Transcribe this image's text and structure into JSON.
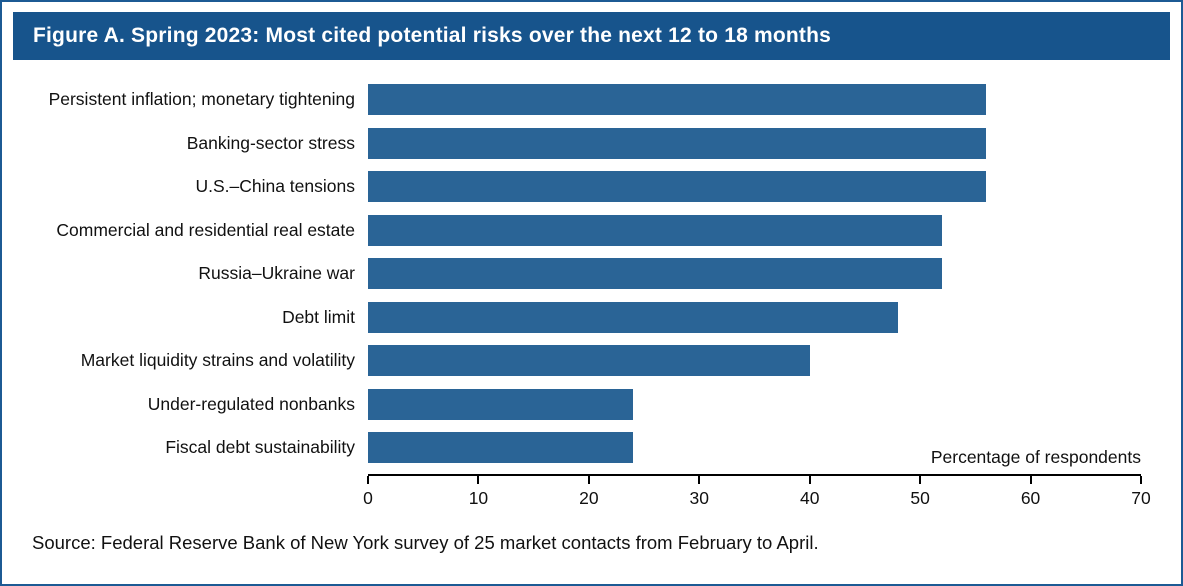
{
  "title": "Figure A. Spring 2023: Most cited potential risks over the next 12 to 18 months",
  "axis_note": "Percentage of respondents",
  "source": "Source: Federal Reserve Bank of New York survey of 25 market contacts from February to April.",
  "colors": {
    "title_bg": "#17548c",
    "bar": "#2a6496",
    "border": "#1c5a94"
  },
  "chart_data": {
    "type": "bar",
    "orientation": "horizontal",
    "title": "Figure A. Spring 2023: Most cited potential risks over the next 12 to 18 months",
    "categories": [
      "Persistent inflation; monetary tightening",
      "Banking-sector stress",
      "U.S.–China tensions",
      "Commercial and residential real estate",
      "Russia–Ukraine war",
      "Debt limit",
      "Market liquidity strains and volatility",
      "Under-regulated nonbanks",
      "Fiscal debt sustainability"
    ],
    "values": [
      56,
      56,
      56,
      52,
      52,
      48,
      40,
      24,
      24
    ],
    "xlabel": "Percentage of respondents",
    "ylabel": "",
    "xlim": [
      0,
      70
    ],
    "xticks": [
      0,
      10,
      20,
      30,
      40,
      50,
      60,
      70
    ],
    "grid": false,
    "legend": false
  }
}
